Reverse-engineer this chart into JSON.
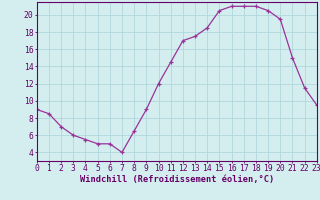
{
  "hours": [
    0,
    1,
    2,
    3,
    4,
    5,
    6,
    7,
    8,
    9,
    10,
    11,
    12,
    13,
    14,
    15,
    16,
    17,
    18,
    19,
    20,
    21,
    22,
    23
  ],
  "values": [
    9,
    8.5,
    7,
    6,
    5.5,
    5,
    5,
    4,
    6.5,
    9,
    12,
    14.5,
    17,
    17.5,
    18.5,
    20.5,
    21,
    21,
    21,
    20.5,
    19.5,
    15,
    11.5,
    9.5
  ],
  "line_color": "#993399",
  "marker_color": "#993399",
  "bg_color": "#d4eef0",
  "grid_color": "#b0d8dc",
  "xlabel": "Windchill (Refroidissement éolien,°C)",
  "xlim": [
    0,
    23
  ],
  "ylim": [
    3,
    21.5
  ],
  "yticks": [
    4,
    6,
    8,
    10,
    12,
    14,
    16,
    18,
    20
  ],
  "xtick_labels": [
    "0",
    "1",
    "2",
    "3",
    "4",
    "5",
    "6",
    "7",
    "8",
    "9",
    "10",
    "11",
    "12",
    "13",
    "14",
    "15",
    "16",
    "17",
    "18",
    "19",
    "20",
    "21",
    "22",
    "23"
  ],
  "axis_color": "#660066",
  "tick_color": "#660066",
  "label_fontsize": 6.2,
  "tick_fontsize": 5.8
}
